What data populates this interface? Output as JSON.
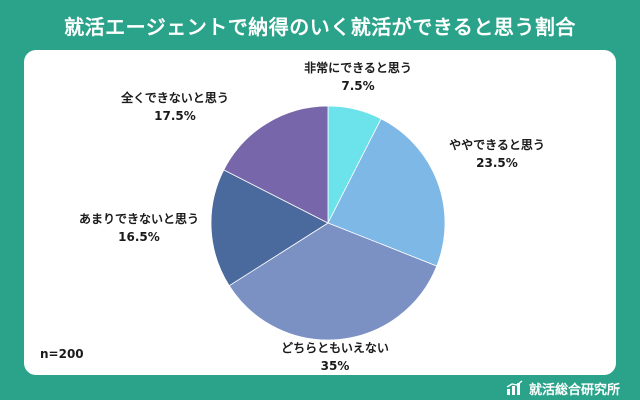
{
  "title": "就活エージェントで納得のいく就活ができると思う割合",
  "sample_size": "n=200",
  "brand": {
    "name": "就活総合研究所",
    "icon": "bar-chart-icon"
  },
  "colors": {
    "background": "#2aa38a",
    "card": "#ffffff",
    "slices": [
      "#6ce3ea",
      "#7db8e6",
      "#7b91c4",
      "#4a6a9e",
      "#7766aa"
    ]
  },
  "chart_data": {
    "type": "pie",
    "title": "就活エージェントで納得のいく就活ができると思う割合",
    "start": "12 o'clock, clockwise",
    "slices": [
      {
        "label": "非常にできると思う",
        "value": 7.5,
        "display": "7.5%"
      },
      {
        "label": "ややできると思う",
        "value": 23.5,
        "display": "23.5%"
      },
      {
        "label": "どちらともいえない",
        "value": 35,
        "display": "35%"
      },
      {
        "label": "あまりできないと思う",
        "value": 16.5,
        "display": "16.5%"
      },
      {
        "label": "全くできないと思う",
        "value": 17.5,
        "display": "17.5%"
      }
    ]
  }
}
